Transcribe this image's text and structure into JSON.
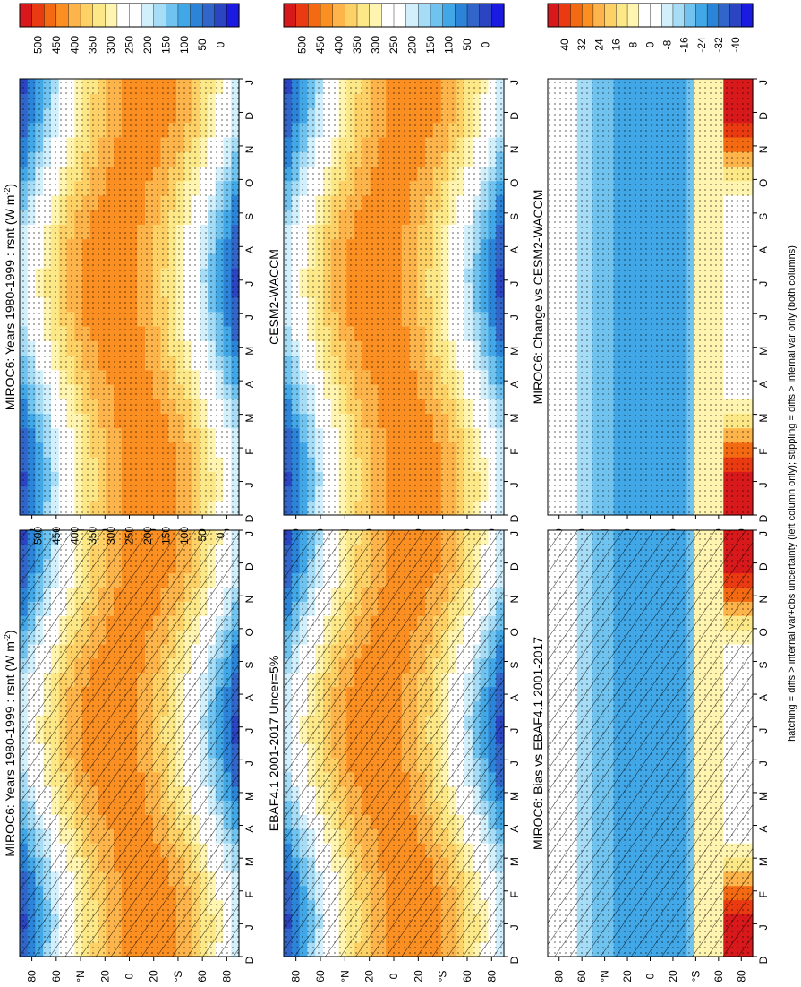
{
  "footnote": "hatching = diffs > internal var+obs uncertainty (left column only); stippling = diffs > internal var only (both columns)",
  "month_ticks": [
    "D",
    "J",
    "F",
    "M",
    "A",
    "M",
    "J",
    "J",
    "A",
    "S",
    "O",
    "N",
    "D",
    "J"
  ],
  "lat_ticks": [
    "80",
    "60",
    "°N",
    "20",
    "0",
    "20",
    "°S",
    "60",
    "80"
  ],
  "colorbars": {
    "abs": {
      "labels": [
        "500",
        "450",
        "400",
        "350",
        "300",
        "250",
        "200",
        "150",
        "100",
        "50",
        "0"
      ],
      "colors": [
        "#d7191c",
        "#ea3a11",
        "#f46a13",
        "#fb8f22",
        "#fdb44a",
        "#fdd165",
        "#fde888",
        "#fff5b0",
        "#ffffff",
        "#ffffff",
        "#d2effc",
        "#a6dcf6",
        "#70c2ef",
        "#42a7e6",
        "#2c84d9",
        "#3265c9",
        "#2a44c2",
        "#1a1ae0"
      ]
    },
    "diff": {
      "labels": [
        "40",
        "32",
        "24",
        "16",
        "8",
        "0",
        "-8",
        "-16",
        "-24",
        "-32",
        "-40"
      ],
      "colors": [
        "#d7191c",
        "#ea3a11",
        "#f46a13",
        "#fb8f22",
        "#fdb44a",
        "#fdd165",
        "#fde888",
        "#fff5b0",
        "#ffffff",
        "#ffffff",
        "#d2effc",
        "#a6dcf6",
        "#70c2ef",
        "#42a7e6",
        "#2c84d9",
        "#3265c9",
        "#2a44c2",
        "#1a1ae0"
      ]
    }
  },
  "chart_data": [
    {
      "type": "heatmap",
      "title": "MIROC6: Years 1980-1999 : rsnt (W m",
      "title_sup": "-2",
      "title_end": ")",
      "x": "month",
      "y": "latitude",
      "xlim": [
        "D",
        "J"
      ],
      "colorbar": "abs",
      "hatching": true,
      "stippling": true
    },
    {
      "type": "heatmap",
      "title": "MIROC6: Years 1980-1999 : rsnt (W m",
      "title_sup": "-2",
      "title_end": ")",
      "x": "month",
      "y": "latitude",
      "xlim": [
        "D",
        "J"
      ],
      "colorbar": "abs",
      "hatching": false,
      "stippling": true
    },
    {
      "type": "heatmap",
      "title": "EBAF4.1 2001-2017 Uncer=5%",
      "x": "month",
      "y": "latitude",
      "xlim": [
        "D",
        "J"
      ],
      "colorbar": "abs",
      "hatching": true,
      "stippling": true
    },
    {
      "type": "heatmap",
      "title": "CESM2-WACCM",
      "x": "month",
      "y": "latitude",
      "xlim": [
        "D",
        "J"
      ],
      "colorbar": "abs",
      "hatching": false,
      "stippling": true
    },
    {
      "type": "heatmap",
      "title": "MIROC6: Bias vs EBAF4.1 2001-2017",
      "x": "month",
      "y": "latitude",
      "xlim": [
        "D",
        "J"
      ],
      "colorbar": "diff",
      "hatching": true,
      "stippling": true
    },
    {
      "type": "heatmap",
      "title": "MIROC6: Change vs CESM2-WACCM",
      "x": "month",
      "y": "latitude",
      "xlim": [
        "D",
        "J"
      ],
      "colorbar": "diff",
      "hatching": false,
      "stippling": true
    }
  ]
}
